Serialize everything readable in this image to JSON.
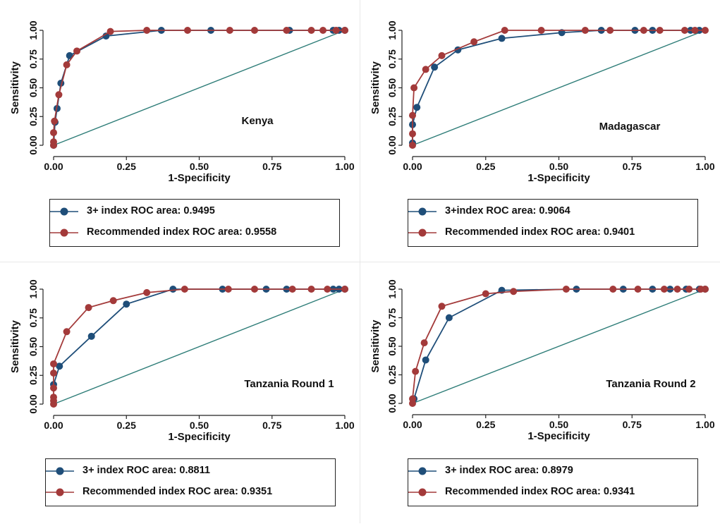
{
  "colors": {
    "series1": "#1f4e79",
    "series2": "#a33a3a",
    "reference": "#2e7d78"
  },
  "chart_data": [
    {
      "type": "line",
      "annotation": "Kenya",
      "xlabel": "1-Specificity",
      "ylabel": "Sensitivity",
      "xlim": [
        0,
        1
      ],
      "ylim": [
        0,
        1
      ],
      "xticks": [
        "0.00",
        "0.25",
        "0.50",
        "0.75",
        "1.00"
      ],
      "yticks": [
        "0.00",
        "0.25",
        "0.50",
        "0.75",
        "1.00"
      ],
      "reference_line": [
        [
          0,
          0
        ],
        [
          1,
          1
        ]
      ],
      "series": [
        {
          "name": "3+ index ROC area: 0.9495",
          "color": "#1f4e79",
          "x": [
            0,
            0.005,
            0.012,
            0.025,
            0.055,
            0.18,
            0.37,
            0.54,
            0.81,
            0.96,
            0.98,
            1.0
          ],
          "y": [
            0,
            0.2,
            0.32,
            0.54,
            0.78,
            0.95,
            1.0,
            1.0,
            1.0,
            1.0,
            1.0,
            1.0
          ]
        },
        {
          "name": "Recommended index ROC area: 0.9558",
          "color": "#a33a3a",
          "x": [
            0,
            0,
            0,
            0.003,
            0.018,
            0.045,
            0.08,
            0.195,
            0.32,
            0.46,
            0.605,
            0.69,
            0.8,
            0.885,
            0.925,
            0.97,
            1.0
          ],
          "y": [
            0,
            0.03,
            0.11,
            0.21,
            0.44,
            0.7,
            0.82,
            0.99,
            1.0,
            1.0,
            1.0,
            1.0,
            1.0,
            1.0,
            1.0,
            1.0,
            1.0
          ]
        }
      ]
    },
    {
      "type": "line",
      "annotation": "Madagascar",
      "xlabel": "1-Specificity",
      "ylabel": "Sensitivity",
      "xlim": [
        0,
        1
      ],
      "ylim": [
        0,
        1
      ],
      "xticks": [
        "0.00",
        "0.25",
        "0.50",
        "0.75",
        "1.00"
      ],
      "yticks": [
        "0.00",
        "0.25",
        "0.50",
        "0.75",
        "1.00"
      ],
      "reference_line": [
        [
          0,
          0
        ],
        [
          1,
          1
        ]
      ],
      "series": [
        {
          "name": "3+index ROC area: 0.9064",
          "color": "#1f4e79",
          "x": [
            0,
            0,
            0.015,
            0.075,
            0.155,
            0.305,
            0.51,
            0.645,
            0.76,
            0.82,
            0.95,
            0.98
          ],
          "y": [
            0.02,
            0.18,
            0.33,
            0.68,
            0.83,
            0.93,
            0.98,
            1.0,
            1.0,
            1.0,
            1.0,
            1.0
          ]
        },
        {
          "name": "Recommended index ROC area: 0.9401",
          "color": "#a33a3a",
          "x": [
            0,
            0,
            0,
            0.005,
            0.045,
            0.1,
            0.21,
            0.315,
            0.44,
            0.59,
            0.675,
            0.79,
            0.845,
            0.93,
            0.965,
            1.0
          ],
          "y": [
            0,
            0.1,
            0.26,
            0.5,
            0.66,
            0.78,
            0.9,
            1.0,
            1.0,
            1.0,
            1.0,
            1.0,
            1.0,
            1.0,
            1.0,
            1.0
          ]
        }
      ]
    },
    {
      "type": "line",
      "annotation": "Tanzania Round 1",
      "xlabel": "1-Specificity",
      "ylabel": "Sensitivity",
      "xlim": [
        0,
        1
      ],
      "ylim": [
        0,
        1
      ],
      "xticks": [
        "0.00",
        "0.25",
        "0.50",
        "0.75",
        "1.00"
      ],
      "yticks": [
        "0.00",
        "0.25",
        "0.50",
        "0.75",
        "1.00"
      ],
      "reference_line": [
        [
          0,
          0
        ],
        [
          1,
          1
        ]
      ],
      "series": [
        {
          "name": "3+ index ROC area: 0.8811",
          "color": "#1f4e79",
          "x": [
            0,
            0.02,
            0.13,
            0.25,
            0.41,
            0.58,
            0.73,
            0.8,
            0.96,
            0.98,
            1.0
          ],
          "y": [
            0.17,
            0.33,
            0.59,
            0.87,
            1.0,
            1.0,
            1.0,
            1.0,
            1.0,
            1.0,
            1.0
          ]
        },
        {
          "name": "Recommended index ROC area: 0.9351",
          "color": "#a33a3a",
          "x": [
            0,
            0,
            0,
            0,
            0,
            0,
            0.045,
            0.12,
            0.205,
            0.32,
            0.45,
            0.6,
            0.69,
            0.82,
            0.885,
            0.94,
            1.0
          ],
          "y": [
            0,
            0.03,
            0.06,
            0.14,
            0.27,
            0.35,
            0.63,
            0.84,
            0.9,
            0.97,
            1.0,
            1.0,
            1.0,
            1.0,
            1.0,
            1.0,
            1.0
          ]
        }
      ]
    },
    {
      "type": "line",
      "annotation": "Tanzania Round 2",
      "xlabel": "1-Specificity",
      "ylabel": "Sensitivity",
      "xlim": [
        0,
        1
      ],
      "ylim": [
        0,
        1
      ],
      "xticks": [
        "0.00",
        "0.25",
        "0.50",
        "0.75",
        "1.00"
      ],
      "yticks": [
        "0.00",
        "0.25",
        "0.50",
        "0.75",
        "1.00"
      ],
      "reference_line": [
        [
          0,
          0
        ],
        [
          1,
          1
        ]
      ],
      "series": [
        {
          "name": "3+ index ROC area: 0.8979",
          "color": "#1f4e79",
          "x": [
            0.005,
            0.045,
            0.125,
            0.305,
            0.56,
            0.72,
            0.82,
            0.88,
            0.935,
            0.98,
            1.0
          ],
          "y": [
            0.04,
            0.38,
            0.75,
            0.99,
            1.0,
            1.0,
            1.0,
            1.0,
            1.0,
            1.0,
            1.0
          ]
        },
        {
          "name": "Recommended index ROC area: 0.9341",
          "color": "#a33a3a",
          "x": [
            0,
            0,
            0.01,
            0.04,
            0.1,
            0.25,
            0.345,
            0.525,
            0.685,
            0.77,
            0.86,
            0.905,
            0.945,
            0.985,
            1.0
          ],
          "y": [
            0,
            0.04,
            0.28,
            0.53,
            0.85,
            0.96,
            0.98,
            1.0,
            1.0,
            1.0,
            1.0,
            1.0,
            1.0,
            1.0,
            1.0
          ]
        }
      ]
    }
  ]
}
